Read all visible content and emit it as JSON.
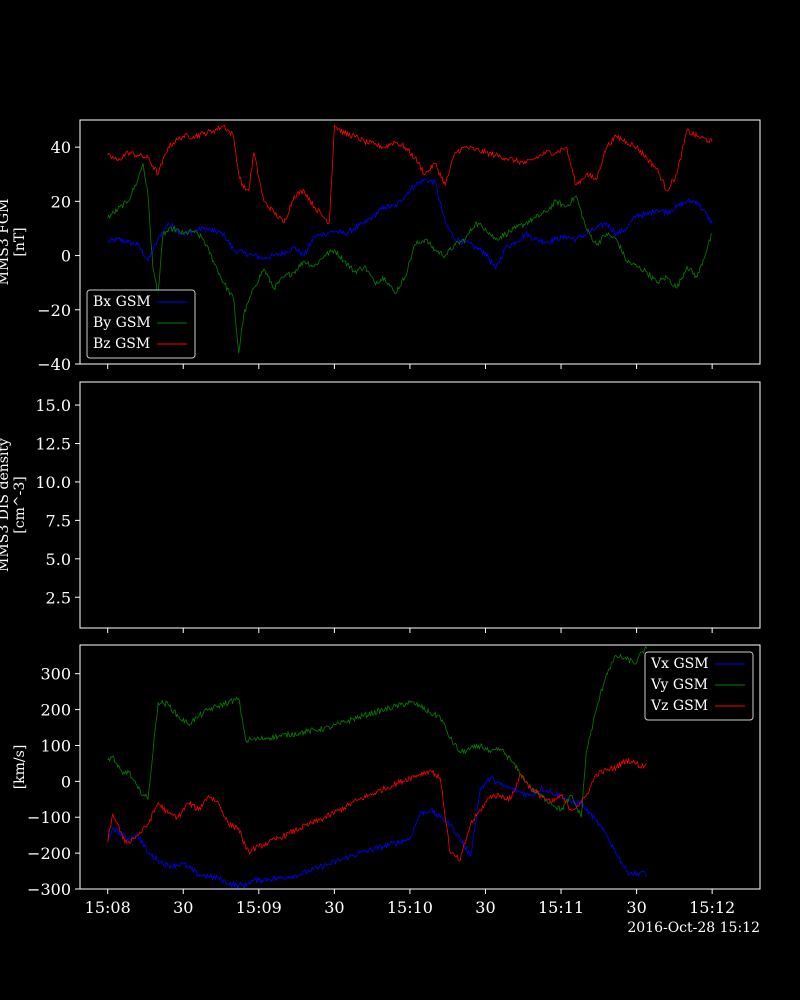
{
  "colors": {
    "background": "#000000",
    "axes": "#ffffff",
    "blue": "#0000ff",
    "green": "#008000",
    "red": "#ff0000"
  },
  "footer_date": "2016-Oct-28 15:12",
  "chart_data": [
    {
      "type": "line",
      "ylabel_line1": "MMS3 FGM",
      "ylabel_line2": "[nT]",
      "ylim": [
        -40,
        50
      ],
      "yticks": [
        -40,
        -20,
        0,
        20,
        40
      ],
      "ytick_labels": [
        "−40",
        "−20",
        "0",
        "20",
        "40"
      ],
      "xlim": [
        487,
        1316
      ],
      "xticks": [
        0,
        30,
        60,
        90,
        120,
        150,
        180,
        210,
        240
      ],
      "legend_position": "lower-left",
      "series": [
        {
          "name": "Bx GSM",
          "color": "#0000ff",
          "x": [
            0,
            4,
            8,
            12,
            16,
            20,
            24,
            28,
            30,
            34,
            38,
            42,
            46,
            50,
            54,
            58,
            62,
            66,
            70,
            74,
            78,
            82,
            86,
            90,
            94,
            98,
            102,
            106,
            110,
            114,
            118,
            122,
            126,
            130,
            134,
            138,
            142,
            146,
            150,
            154,
            158,
            162,
            166,
            170,
            174,
            178,
            182,
            186,
            190,
            194,
            198,
            202,
            206,
            210,
            214,
            218,
            222,
            226,
            230,
            234,
            240
          ],
          "y": [
            5,
            6,
            5,
            4,
            -2,
            6,
            12,
            9,
            8,
            9,
            10,
            9,
            8,
            2,
            1,
            0,
            -1,
            0,
            1,
            3,
            0,
            7,
            8,
            9,
            8,
            10,
            12,
            15,
            18,
            18,
            22,
            26,
            28,
            27,
            12,
            6,
            5,
            3,
            1,
            -5,
            3,
            5,
            8,
            6,
            5,
            6,
            7,
            6,
            8,
            10,
            12,
            8,
            10,
            15,
            15,
            17,
            16,
            18,
            20,
            20,
            12
          ]
        },
        {
          "name": "By GSM",
          "color": "#008000",
          "x": [
            0,
            4,
            8,
            12,
            14,
            16,
            18,
            20,
            22,
            26,
            30,
            34,
            38,
            42,
            46,
            50,
            52,
            54,
            58,
            62,
            66,
            70,
            74,
            78,
            82,
            86,
            90,
            94,
            98,
            102,
            106,
            110,
            114,
            118,
            122,
            126,
            130,
            134,
            138,
            142,
            146,
            150,
            154,
            158,
            162,
            166,
            170,
            174,
            178,
            182,
            186,
            190,
            194,
            198,
            202,
            206,
            210,
            214,
            218,
            222,
            226,
            230,
            234,
            240
          ],
          "y": [
            14,
            17,
            20,
            28,
            34,
            22,
            -5,
            -14,
            8,
            10,
            8,
            9,
            6,
            -2,
            -10,
            -16,
            -36,
            -22,
            -12,
            -5,
            -12,
            -8,
            -6,
            -2,
            -4,
            0,
            2,
            -2,
            -6,
            -4,
            -10,
            -8,
            -14,
            -8,
            4,
            6,
            2,
            0,
            4,
            6,
            12,
            10,
            6,
            8,
            10,
            12,
            14,
            16,
            20,
            18,
            22,
            10,
            4,
            8,
            6,
            -2,
            -4,
            -6,
            -10,
            -8,
            -12,
            -4,
            -8,
            8
          ]
        },
        {
          "name": "Bz GSM",
          "color": "#ff0000",
          "x": [
            0,
            4,
            8,
            12,
            16,
            20,
            24,
            28,
            30,
            34,
            38,
            42,
            46,
            50,
            52,
            54,
            56,
            58,
            62,
            66,
            70,
            74,
            78,
            82,
            86,
            88,
            90,
            94,
            98,
            102,
            106,
            110,
            114,
            118,
            122,
            126,
            130,
            134,
            138,
            142,
            146,
            150,
            154,
            158,
            162,
            166,
            170,
            174,
            178,
            182,
            186,
            190,
            194,
            198,
            202,
            206,
            210,
            214,
            218,
            222,
            226,
            230,
            234,
            240
          ],
          "y": [
            37,
            35,
            38,
            37,
            36,
            30,
            40,
            43,
            44,
            44,
            45,
            46,
            48,
            44,
            30,
            25,
            24,
            38,
            20,
            16,
            12,
            22,
            24,
            18,
            14,
            12,
            48,
            45,
            44,
            42,
            41,
            40,
            42,
            40,
            36,
            30,
            34,
            26,
            38,
            40,
            39,
            38,
            37,
            36,
            35,
            34,
            36,
            38,
            38,
            40,
            26,
            30,
            28,
            40,
            44,
            42,
            40,
            36,
            32,
            24,
            30,
            46,
            44,
            42
          ]
        }
      ]
    },
    {
      "type": "line",
      "ylabel_line1": "MMS3 DIS density",
      "ylabel_line2": "[cm^-3]",
      "ylim": [
        0.5,
        16.5
      ],
      "yticks": [
        2.5,
        5.0,
        7.5,
        10.0,
        12.5,
        15.0
      ],
      "ytick_labels": [
        "2.5",
        "5.0",
        "7.5",
        "10.0",
        "12.5",
        "15.0"
      ],
      "series": []
    },
    {
      "type": "line",
      "ylabel_line1": "",
      "ylabel_line2": "[km/s]",
      "ylim": [
        -300,
        380
      ],
      "yticks": [
        -300,
        -200,
        -100,
        0,
        100,
        200,
        300
      ],
      "ytick_labels": [
        "−300",
        "−200",
        "−100",
        "0",
        "100",
        "200",
        "300"
      ],
      "xtick_labels": [
        "15:08",
        "30",
        "15:09",
        "30",
        "15:10",
        "30",
        "15:11",
        "30",
        "15:12"
      ],
      "legend_position": "top-right",
      "series": [
        {
          "name": "Vx GSM",
          "color": "#0000ff",
          "x": [
            0,
            2,
            4,
            6,
            8,
            12,
            16,
            20,
            24,
            30,
            36,
            40,
            44,
            48,
            52,
            55,
            56,
            60,
            64,
            68,
            72,
            76,
            80,
            84,
            88,
            92,
            100,
            110,
            120,
            124,
            128,
            132,
            136,
            140,
            144,
            148,
            152,
            156,
            160,
            164,
            168,
            172,
            176,
            180,
            184,
            188,
            190,
            194,
            198,
            202,
            206,
            210,
            212,
            214
          ],
          "y": [
            -170,
            -130,
            -140,
            -150,
            -160,
            -150,
            -200,
            -220,
            -235,
            -230,
            -260,
            -265,
            -270,
            -285,
            -290,
            -290,
            -280,
            -275,
            -272,
            -270,
            -265,
            -260,
            -250,
            -240,
            -230,
            -220,
            -200,
            -180,
            -160,
            -90,
            -80,
            -100,
            -120,
            -160,
            -210,
            -20,
            10,
            -10,
            -20,
            -30,
            -40,
            -20,
            -30,
            -40,
            -60,
            -60,
            -80,
            -110,
            -150,
            -200,
            -250,
            -260,
            -250,
            -265
          ]
        },
        {
          "name": "Vy GSM",
          "color": "#008000",
          "x": [
            0,
            2,
            4,
            6,
            8,
            12,
            16,
            20,
            24,
            28,
            32,
            36,
            40,
            44,
            48,
            52,
            55,
            56,
            60,
            64,
            68,
            72,
            76,
            80,
            84,
            88,
            92,
            100,
            110,
            120,
            124,
            128,
            132,
            136,
            140,
            144,
            148,
            152,
            156,
            160,
            164,
            168,
            172,
            176,
            180,
            184,
            188,
            190,
            194,
            198,
            202,
            206,
            210,
            212,
            214
          ],
          "y": [
            60,
            70,
            40,
            20,
            30,
            -20,
            -50,
            220,
            215,
            180,
            160,
            180,
            200,
            210,
            220,
            230,
            110,
            115,
            118,
            122,
            126,
            130,
            135,
            140,
            145,
            150,
            160,
            180,
            200,
            220,
            210,
            190,
            180,
            120,
            80,
            90,
            100,
            80,
            90,
            60,
            20,
            -20,
            -40,
            -60,
            -80,
            -40,
            -100,
            80,
            200,
            300,
            350,
            340,
            330,
            360,
            370
          ]
        },
        {
          "name": "Vz GSM",
          "color": "#ff0000",
          "x": [
            0,
            2,
            4,
            6,
            8,
            12,
            16,
            20,
            24,
            28,
            32,
            36,
            40,
            44,
            48,
            52,
            55,
            56,
            60,
            64,
            68,
            72,
            76,
            80,
            84,
            88,
            92,
            100,
            110,
            120,
            124,
            128,
            132,
            136,
            140,
            144,
            148,
            152,
            156,
            160,
            164,
            168,
            172,
            176,
            180,
            184,
            188,
            190,
            194,
            198,
            202,
            206,
            210,
            212,
            214
          ],
          "y": [
            -170,
            -90,
            -120,
            -160,
            -170,
            -150,
            -120,
            -60,
            -90,
            -100,
            -60,
            -80,
            -40,
            -60,
            -120,
            -130,
            -190,
            -195,
            -182,
            -170,
            -158,
            -145,
            -132,
            -120,
            -108,
            -95,
            -80,
            -50,
            -20,
            10,
            20,
            30,
            10,
            -200,
            -220,
            -120,
            -80,
            -40,
            -40,
            -50,
            20,
            -20,
            -40,
            -60,
            -40,
            -80,
            -60,
            -40,
            20,
            30,
            40,
            60,
            50,
            40,
            50
          ]
        }
      ]
    }
  ]
}
